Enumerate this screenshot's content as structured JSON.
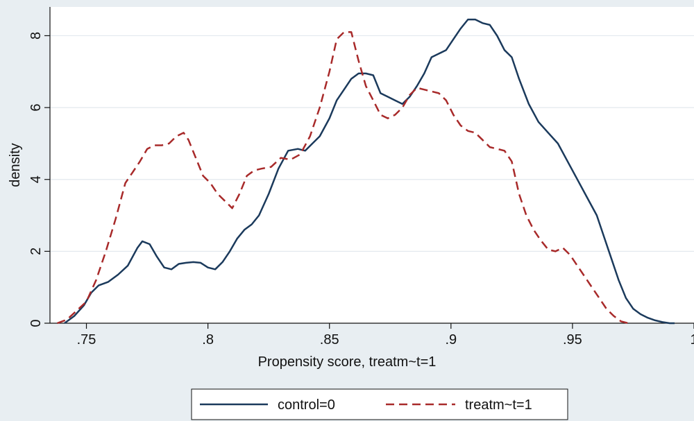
{
  "chart_data": {
    "type": "line",
    "title": "",
    "xlabel": "Propensity score, treatm~t=1",
    "ylabel": "density",
    "xlim": [
      0.735,
      1.0
    ],
    "ylim": [
      0,
      8.8
    ],
    "xticks": [
      0.75,
      0.8,
      0.85,
      0.9,
      0.95,
      1.0
    ],
    "xtick_labels": [
      ".75",
      ".8",
      ".85",
      ".9",
      ".95",
      "1"
    ],
    "yticks": [
      0,
      2,
      4,
      6,
      8
    ],
    "ytick_labels": [
      "0",
      "2",
      "4",
      "6",
      "8"
    ],
    "grid": "horizontal",
    "legend_position": "bottom",
    "series": [
      {
        "name": "control=0",
        "color": "#1b3a5c",
        "dash": "solid",
        "x": [
          0.741,
          0.745,
          0.749,
          0.752,
          0.755,
          0.759,
          0.763,
          0.767,
          0.771,
          0.773,
          0.776,
          0.779,
          0.782,
          0.785,
          0.788,
          0.791,
          0.794,
          0.797,
          0.8,
          0.803,
          0.806,
          0.809,
          0.812,
          0.815,
          0.818,
          0.821,
          0.825,
          0.829,
          0.833,
          0.837,
          0.84,
          0.843,
          0.846,
          0.85,
          0.853,
          0.856,
          0.859,
          0.862,
          0.865,
          0.868,
          0.871,
          0.874,
          0.877,
          0.88,
          0.883,
          0.886,
          0.889,
          0.892,
          0.895,
          0.898,
          0.901,
          0.904,
          0.907,
          0.91,
          0.913,
          0.916,
          0.919,
          0.922,
          0.925,
          0.928,
          0.932,
          0.936,
          0.94,
          0.944,
          0.948,
          0.952,
          0.956,
          0.96,
          0.963,
          0.966,
          0.969,
          0.972,
          0.975,
          0.978,
          0.981,
          0.984,
          0.987,
          0.99,
          0.992
        ],
        "y": [
          0.0,
          0.2,
          0.5,
          0.85,
          1.05,
          1.15,
          1.35,
          1.6,
          2.1,
          2.28,
          2.2,
          1.85,
          1.55,
          1.5,
          1.65,
          1.68,
          1.7,
          1.68,
          1.55,
          1.5,
          1.7,
          2.0,
          2.35,
          2.6,
          2.75,
          3.0,
          3.6,
          4.3,
          4.8,
          4.85,
          4.8,
          5.0,
          5.2,
          5.7,
          6.2,
          6.5,
          6.8,
          6.95,
          6.95,
          6.9,
          6.4,
          6.3,
          6.2,
          6.1,
          6.3,
          6.6,
          6.95,
          7.4,
          7.5,
          7.6,
          7.9,
          8.2,
          8.45,
          8.45,
          8.35,
          8.3,
          8.0,
          7.6,
          7.4,
          6.8,
          6.1,
          5.6,
          5.3,
          5.0,
          4.5,
          4.0,
          3.5,
          3.0,
          2.4,
          1.8,
          1.2,
          0.7,
          0.4,
          0.25,
          0.15,
          0.08,
          0.03,
          0.0,
          0.0
        ]
      },
      {
        "name": "treatm~t=1",
        "color": "#a82a2a",
        "dash": "dashed",
        "x": [
          0.738,
          0.742,
          0.746,
          0.75,
          0.754,
          0.758,
          0.762,
          0.766,
          0.769,
          0.772,
          0.775,
          0.778,
          0.781,
          0.784,
          0.787,
          0.79,
          0.792,
          0.795,
          0.798,
          0.801,
          0.804,
          0.807,
          0.81,
          0.813,
          0.816,
          0.819,
          0.822,
          0.826,
          0.83,
          0.834,
          0.838,
          0.842,
          0.846,
          0.85,
          0.853,
          0.856,
          0.859,
          0.862,
          0.865,
          0.868,
          0.871,
          0.874,
          0.877,
          0.88,
          0.883,
          0.886,
          0.889,
          0.892,
          0.895,
          0.898,
          0.901,
          0.904,
          0.907,
          0.91,
          0.913,
          0.916,
          0.919,
          0.922,
          0.925,
          0.928,
          0.931,
          0.934,
          0.937,
          0.94,
          0.943,
          0.946,
          0.949,
          0.952,
          0.955,
          0.958,
          0.961,
          0.964,
          0.967,
          0.97,
          0.973
        ],
        "y": [
          0.0,
          0.1,
          0.35,
          0.6,
          1.2,
          2.0,
          2.9,
          3.9,
          4.2,
          4.5,
          4.85,
          4.95,
          4.95,
          5.0,
          5.2,
          5.3,
          5.1,
          4.6,
          4.1,
          3.9,
          3.6,
          3.4,
          3.2,
          3.6,
          4.1,
          4.25,
          4.3,
          4.35,
          4.6,
          4.55,
          4.7,
          5.2,
          6.0,
          7.0,
          7.9,
          8.1,
          8.1,
          7.3,
          6.6,
          6.2,
          5.8,
          5.7,
          5.8,
          6.0,
          6.35,
          6.55,
          6.5,
          6.45,
          6.4,
          6.2,
          5.8,
          5.5,
          5.35,
          5.3,
          5.1,
          4.9,
          4.85,
          4.8,
          4.5,
          3.6,
          3.0,
          2.6,
          2.3,
          2.05,
          2.0,
          2.1,
          1.9,
          1.6,
          1.3,
          1.0,
          0.7,
          0.4,
          0.2,
          0.05,
          0.0
        ]
      }
    ]
  }
}
